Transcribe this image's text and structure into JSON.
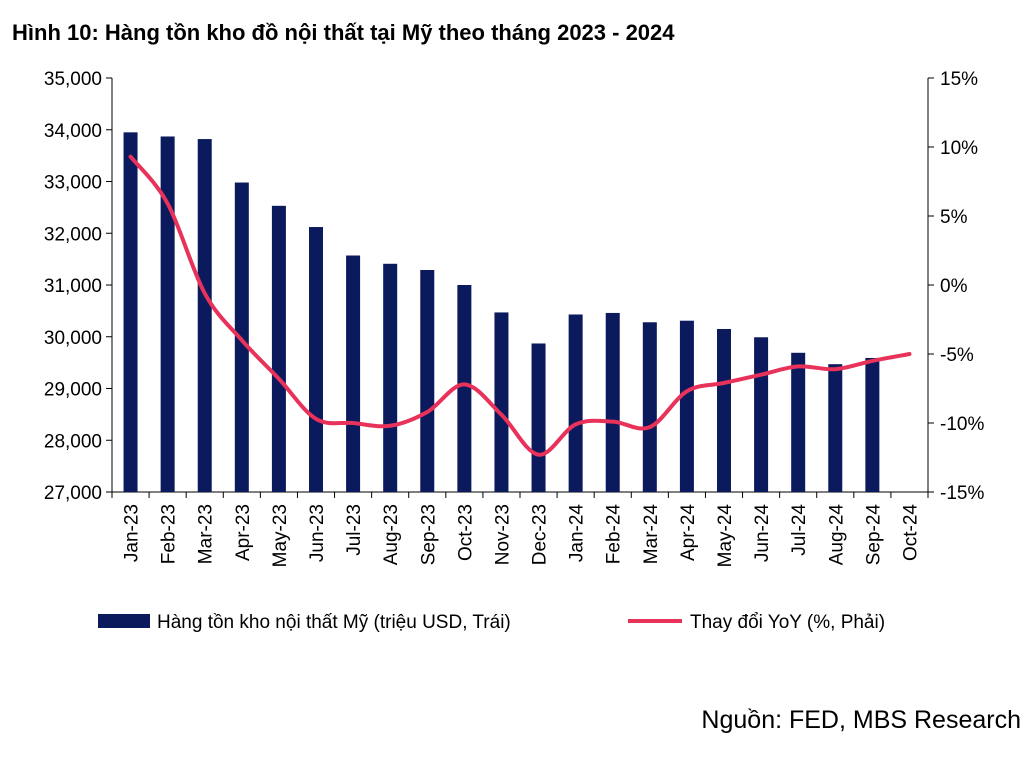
{
  "title": "Hình 10: Hàng tồn kho đồ nội thất tại Mỹ theo tháng 2023 - 2024",
  "source": "Nguồn: FED, MBS Research",
  "colors": {
    "bars": "#0b1a5c",
    "line": "#e8325a",
    "axis": "#000000"
  },
  "chart_data": {
    "type": "bar",
    "categories": [
      "Jan-23",
      "Feb-23",
      "Mar-23",
      "Apr-23",
      "May-23",
      "Jun-23",
      "Jul-23",
      "Aug-23",
      "Sep-23",
      "Oct-23",
      "Nov-23",
      "Dec-23",
      "Jan-24",
      "Feb-24",
      "Mar-24",
      "Apr-24",
      "May-24",
      "Jun-24",
      "Jul-24",
      "Aug-24",
      "Sep-24",
      "Oct-24"
    ],
    "series": [
      {
        "name": "Hàng tồn kho nội thất Mỹ (triệu USD, Trái)",
        "type": "bar",
        "axis": "left",
        "values": [
          33950,
          33870,
          33820,
          32980,
          32530,
          32120,
          31570,
          31410,
          31290,
          31000,
          30470,
          29870,
          30430,
          30460,
          30280,
          30310,
          30150,
          29990,
          29690,
          29470,
          29590,
          null
        ]
      },
      {
        "name": "Thay đổi YoY (%, Phải)",
        "type": "line",
        "axis": "right",
        "values": [
          9.3,
          5.9,
          -0.6,
          -4.0,
          -6.8,
          -9.7,
          -10.0,
          -10.2,
          -9.2,
          -7.2,
          -9.4,
          -12.3,
          -10.1,
          -9.9,
          -10.3,
          -7.7,
          -7.1,
          -6.5,
          -5.9,
          -6.1,
          -5.5,
          -5.0
        ]
      }
    ],
    "y_left": {
      "min": 27000,
      "max": 35000,
      "ticks": [
        "27,000",
        "28,000",
        "29,000",
        "30,000",
        "31,000",
        "32,000",
        "33,000",
        "34,000",
        "35,000"
      ]
    },
    "y_right": {
      "min": -15,
      "max": 15,
      "ticks": [
        "-15%",
        "-10%",
        "-5%",
        "0%",
        "5%",
        "10%",
        "15%"
      ]
    },
    "grid": false,
    "legend_position": "bottom"
  }
}
